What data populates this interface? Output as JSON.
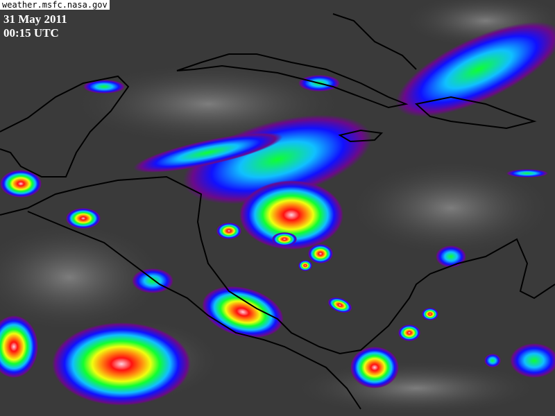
{
  "source_label": "weather.msfc.nasa.gov",
  "date": "31 May 2011",
  "time": "00:15 UTC",
  "image_type": "enhanced infrared satellite image",
  "colors": {
    "background_clouds": "#3a3a3a",
    "coastline": "#000000",
    "scale": [
      "#6a0a8a",
      "#1010ff",
      "#10c0ff",
      "#10ff30",
      "#f0ff10",
      "#ff8010",
      "#ff1010",
      "#ffd0e0"
    ]
  }
}
